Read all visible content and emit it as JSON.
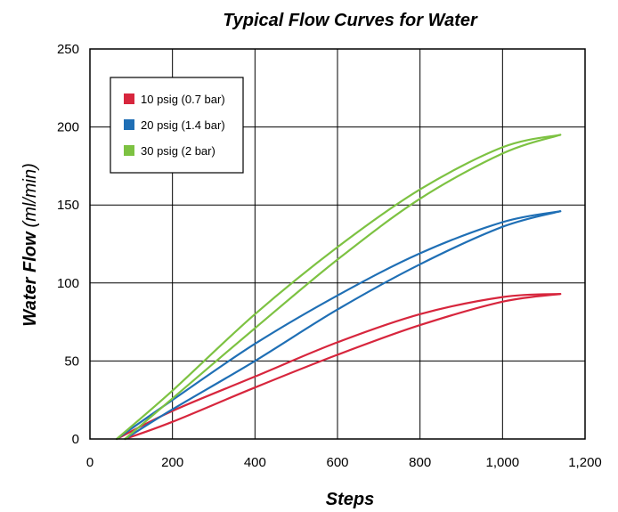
{
  "chart_data": {
    "type": "line",
    "title": "Typical Flow Curves for Water",
    "xlabel": "Steps",
    "ylabel_bold": "Water Flow",
    "ylabel_unit": "(ml/min)",
    "xlim": [
      0,
      1200
    ],
    "ylim": [
      0,
      250
    ],
    "x_ticks": [
      0,
      200,
      400,
      600,
      800,
      1000,
      1200
    ],
    "x_tick_labels": [
      "0",
      "200",
      "400",
      "600",
      "800",
      "1,000",
      "1,200"
    ],
    "y_ticks": [
      0,
      50,
      100,
      150,
      200,
      250
    ],
    "y_tick_labels": [
      "0",
      "50",
      "100",
      "150",
      "200",
      "250"
    ],
    "grid": true,
    "legend_position": "top-left",
    "series": [
      {
        "name": "10 psig (0.7 bar)",
        "color": "#d7263d",
        "upper": [
          [
            65,
            0
          ],
          [
            200,
            18
          ],
          [
            400,
            40
          ],
          [
            600,
            62
          ],
          [
            800,
            80
          ],
          [
            1000,
            91
          ],
          [
            1140,
            93
          ]
        ],
        "lower": [
          [
            85,
            0
          ],
          [
            200,
            11
          ],
          [
            400,
            33
          ],
          [
            600,
            54
          ],
          [
            800,
            73
          ],
          [
            1000,
            88
          ],
          [
            1140,
            93
          ]
        ]
      },
      {
        "name": "20 psig (1.4 bar)",
        "color": "#1f6fb5",
        "upper": [
          [
            65,
            0
          ],
          [
            200,
            25
          ],
          [
            400,
            61
          ],
          [
            600,
            92
          ],
          [
            800,
            119
          ],
          [
            1000,
            139
          ],
          [
            1140,
            146
          ]
        ],
        "lower": [
          [
            85,
            0
          ],
          [
            200,
            19
          ],
          [
            400,
            50
          ],
          [
            600,
            83
          ],
          [
            800,
            112
          ],
          [
            1000,
            136
          ],
          [
            1140,
            146
          ]
        ]
      },
      {
        "name": "30 psig (2 bar)",
        "color": "#7dc242",
        "upper": [
          [
            65,
            0
          ],
          [
            200,
            31
          ],
          [
            400,
            80
          ],
          [
            600,
            123
          ],
          [
            800,
            160
          ],
          [
            1000,
            187
          ],
          [
            1140,
            195
          ]
        ],
        "lower": [
          [
            85,
            0
          ],
          [
            200,
            26
          ],
          [
            400,
            71
          ],
          [
            600,
            115
          ],
          [
            800,
            154
          ],
          [
            1000,
            183
          ],
          [
            1140,
            195
          ]
        ]
      }
    ]
  }
}
